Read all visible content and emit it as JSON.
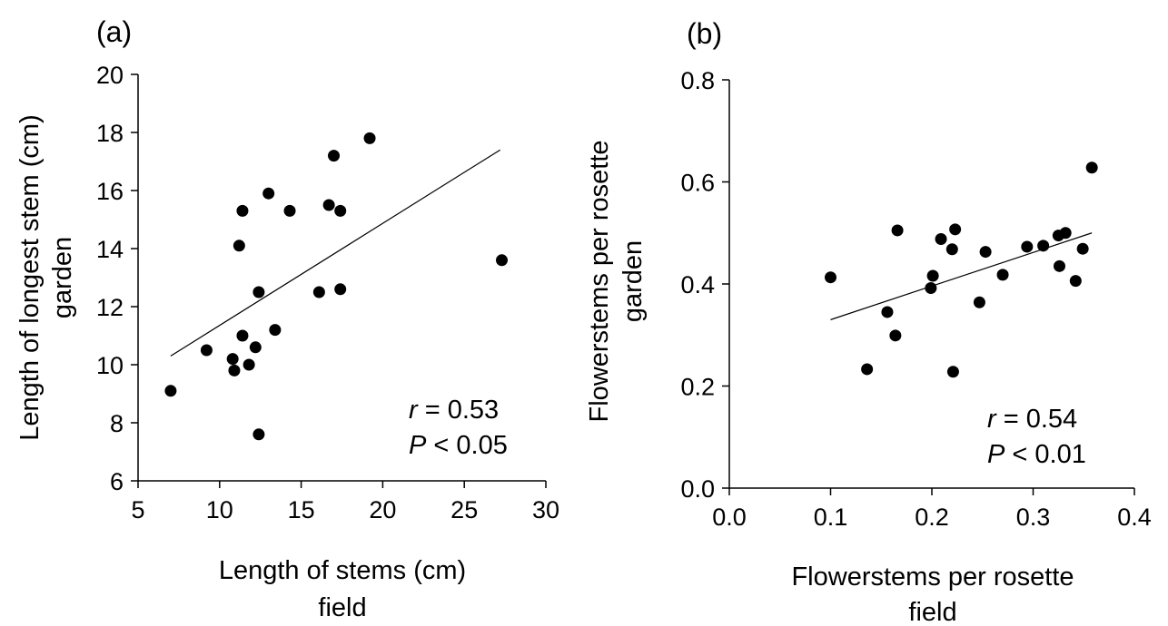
{
  "chart_data": [
    {
      "type": "scatter",
      "panel_label": "(a)",
      "xlabel": [
        "Length of stems (cm)",
        "field"
      ],
      "ylabel": [
        "Length of longest stem (cm)",
        "garden"
      ],
      "xlim": [
        5,
        30
      ],
      "ylim": [
        6,
        20
      ],
      "xticks": [
        "5",
        "10",
        "15",
        "20",
        "25",
        "30"
      ],
      "yticks": [
        "6",
        "8",
        "10",
        "12",
        "14",
        "16",
        "18",
        "20"
      ],
      "grid": false,
      "points": [
        {
          "x": 7.0,
          "y": 9.1
        },
        {
          "x": 9.2,
          "y": 10.5
        },
        {
          "x": 10.8,
          "y": 10.2
        },
        {
          "x": 10.9,
          "y": 9.8
        },
        {
          "x": 11.2,
          "y": 14.1
        },
        {
          "x": 11.4,
          "y": 11.0
        },
        {
          "x": 11.4,
          "y": 15.3
        },
        {
          "x": 11.8,
          "y": 10.0
        },
        {
          "x": 12.2,
          "y": 10.6
        },
        {
          "x": 12.4,
          "y": 12.5
        },
        {
          "x": 12.4,
          "y": 7.6
        },
        {
          "x": 13.0,
          "y": 15.9
        },
        {
          "x": 13.4,
          "y": 11.2
        },
        {
          "x": 14.3,
          "y": 15.3
        },
        {
          "x": 16.1,
          "y": 12.5
        },
        {
          "x": 16.7,
          "y": 15.5
        },
        {
          "x": 17.0,
          "y": 17.2
        },
        {
          "x": 17.4,
          "y": 15.3
        },
        {
          "x": 17.4,
          "y": 12.6
        },
        {
          "x": 19.2,
          "y": 17.8
        },
        {
          "x": 27.3,
          "y": 13.6
        }
      ],
      "trendline": {
        "x": [
          7.0,
          27.2
        ],
        "y": [
          10.3,
          17.4
        ]
      },
      "stats": {
        "r_label": "r",
        "r_text": " = 0.53",
        "p_label": "P",
        "p_text": " < 0.05"
      }
    },
    {
      "type": "scatter",
      "panel_label": "(b)",
      "xlabel": [
        "Flowerstems per rosette",
        "field"
      ],
      "ylabel": [
        "Flowerstems per rosette",
        "garden"
      ],
      "xlim": [
        0.0,
        0.4
      ],
      "ylim": [
        0.0,
        0.8
      ],
      "xticks": [
        "0.0",
        "0.1",
        "0.2",
        "0.3",
        "0.4"
      ],
      "yticks": [
        "0.0",
        "0.2",
        "0.4",
        "0.6",
        "0.8"
      ],
      "grid": false,
      "points": [
        {
          "x": 0.1,
          "y": 0.413
        },
        {
          "x": 0.136,
          "y": 0.233
        },
        {
          "x": 0.156,
          "y": 0.345
        },
        {
          "x": 0.164,
          "y": 0.299
        },
        {
          "x": 0.166,
          "y": 0.505
        },
        {
          "x": 0.199,
          "y": 0.392
        },
        {
          "x": 0.201,
          "y": 0.416
        },
        {
          "x": 0.209,
          "y": 0.488
        },
        {
          "x": 0.22,
          "y": 0.468
        },
        {
          "x": 0.221,
          "y": 0.228
        },
        {
          "x": 0.223,
          "y": 0.507
        },
        {
          "x": 0.247,
          "y": 0.364
        },
        {
          "x": 0.253,
          "y": 0.463
        },
        {
          "x": 0.27,
          "y": 0.418
        },
        {
          "x": 0.294,
          "y": 0.473
        },
        {
          "x": 0.31,
          "y": 0.475
        },
        {
          "x": 0.325,
          "y": 0.495
        },
        {
          "x": 0.326,
          "y": 0.435
        },
        {
          "x": 0.332,
          "y": 0.5
        },
        {
          "x": 0.342,
          "y": 0.406
        },
        {
          "x": 0.349,
          "y": 0.469
        },
        {
          "x": 0.358,
          "y": 0.628
        }
      ],
      "trendline": {
        "x": [
          0.1,
          0.358
        ],
        "y": [
          0.33,
          0.5
        ]
      },
      "stats": {
        "r_label": "r",
        "r_text": " = 0.54",
        "p_label": "P",
        "p_text": " < 0.01"
      }
    }
  ]
}
